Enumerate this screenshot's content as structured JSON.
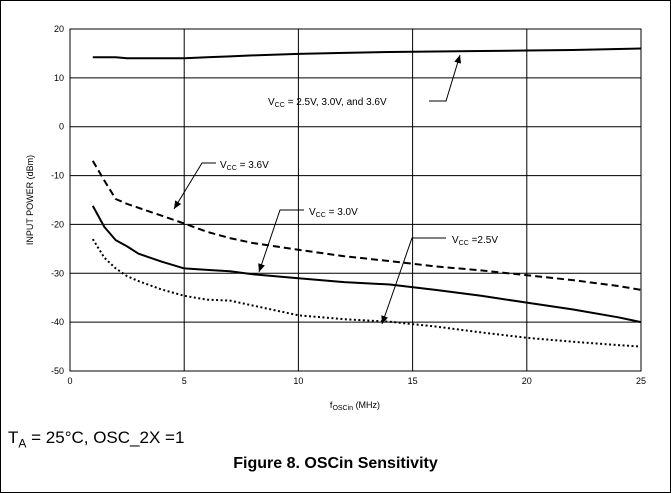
{
  "chart_data": {
    "type": "line",
    "x": [
      1,
      1.5,
      2,
      2.5,
      3,
      4,
      5,
      6,
      7,
      8,
      10,
      12,
      14,
      16,
      18,
      20,
      22,
      24,
      25
    ],
    "series": [
      {
        "label_main": "V",
        "label_sub": "CC",
        "label_rest": " = 2.5V, 3.0V, and 3.6V",
        "style": "solid",
        "values": [
          14.2,
          14.2,
          14.2,
          14.0,
          14.0,
          14.0,
          14.0,
          14.2,
          14.4,
          14.6,
          14.9,
          15.1,
          15.3,
          15.4,
          15.5,
          15.6,
          15.7,
          15.9,
          16.0
        ]
      },
      {
        "label_main": "V",
        "label_sub": "CC",
        "label_rest": " = 3.6V",
        "style": "dashed",
        "values": [
          -7.0,
          -11.0,
          -14.8,
          -15.8,
          -16.6,
          -18.2,
          -19.8,
          -21.5,
          -22.8,
          -23.8,
          -25.2,
          -26.5,
          -27.5,
          -28.6,
          -29.4,
          -30.4,
          -31.4,
          -32.6,
          -33.4
        ]
      },
      {
        "label_main": "V",
        "label_sub": "CC",
        "label_rest": " = 3.0V",
        "style": "solid",
        "values": [
          -16.2,
          -20.5,
          -23.2,
          -24.5,
          -26.0,
          -27.6,
          -29.0,
          -29.3,
          -29.6,
          -30.2,
          -31.0,
          -31.8,
          -32.3,
          -33.4,
          -34.6,
          -36.0,
          -37.4,
          -39.0,
          -40.0
        ]
      },
      {
        "label_main": "V",
        "label_sub": "CC",
        "label_rest": " =2.5V",
        "style": "dotted",
        "values": [
          -23.0,
          -26.8,
          -29.0,
          -30.6,
          -31.6,
          -33.3,
          -34.6,
          -35.4,
          -35.6,
          -36.6,
          -38.6,
          -39.4,
          -39.9,
          -40.9,
          -42.1,
          -43.2,
          -44.0,
          -44.7,
          -45.0
        ]
      }
    ],
    "xlim": [
      0,
      25
    ],
    "ylim": [
      -50,
      20
    ],
    "xticks": [
      0,
      5,
      10,
      15,
      20,
      25
    ],
    "yticks": [
      20,
      10,
      0,
      -10,
      -20,
      -30,
      -40,
      -50
    ],
    "xlabel_main": "f",
    "xlabel_sub": "OSCin",
    "xlabel_rest": " (MHz)",
    "ylabel": "INPUT POWER (dBm)",
    "grid": true
  },
  "conditions": {
    "t": "T",
    "t_sub": "A",
    "rest": " = 25°C, OSC_2X =1"
  },
  "caption": "Figure 8. OSCin Sensitivity"
}
